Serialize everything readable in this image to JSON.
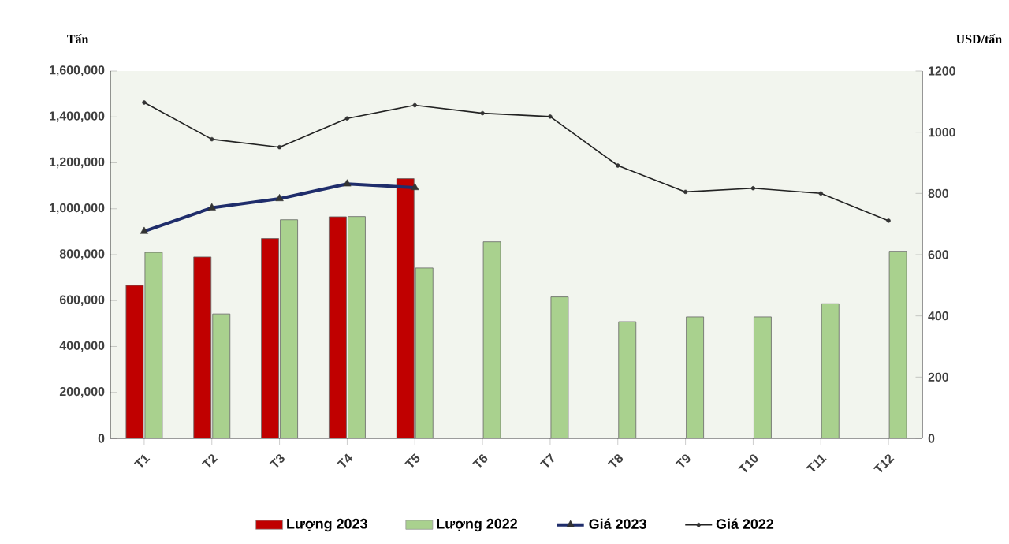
{
  "chart_data": {
    "type": "bar",
    "ylabel": "Tấn",
    "y2label": "USD/tấn",
    "categories": [
      "T1",
      "T2",
      "T3",
      "T4",
      "T5",
      "T6",
      "T7",
      "T8",
      "T9",
      "T10",
      "T11",
      "T12"
    ],
    "series": [
      {
        "name": "Lượng 2023",
        "color": "#c00000",
        "values": [
          666000,
          790000,
          870000,
          965000,
          1131000,
          null,
          null,
          null,
          null,
          null,
          null,
          null
        ]
      },
      {
        "name": "Lượng 2022",
        "color": "#a9d18e",
        "values": [
          810000,
          542000,
          952000,
          966000,
          742000,
          856000,
          616000,
          508000,
          529000,
          529000,
          586000,
          815000
        ]
      },
      {
        "name": "Giá 2023",
        "type": "line",
        "axis": "y2",
        "color": "#1f2d6b",
        "marker": "triangle",
        "values": [
          676,
          753,
          783,
          831,
          819,
          null,
          null,
          null,
          null,
          null,
          null,
          null
        ]
      },
      {
        "name": "Giá 2022",
        "type": "line",
        "axis": "y2",
        "color": "#222222",
        "marker": "circle",
        "values": [
          1097,
          977,
          951,
          1045,
          1088,
          1062,
          1051,
          891,
          805,
          817,
          800,
          711
        ]
      }
    ],
    "ylim": [
      0,
      1600000
    ],
    "yticks": [
      0,
      {
        "value": 200000,
        "label": "200,000"
      },
      {
        "value": 400000,
        "label": "400,000"
      },
      {
        "value": 600000,
        "label": "600,000"
      },
      {
        "value": 800000,
        "label": "800,000"
      },
      {
        "value": 1000000,
        "label": "1,000,000"
      },
      {
        "value": 1200000,
        "label": "1,200,000"
      },
      {
        "value": 1400000,
        "label": "1,400,000"
      },
      {
        "value": 1600000,
        "label": "1,600,000"
      }
    ],
    "y2lim": [
      0,
      1200
    ],
    "y2ticks": [
      0,
      200,
      400,
      600,
      800,
      1000,
      1200
    ],
    "grid": false,
    "legend": "bottom"
  }
}
